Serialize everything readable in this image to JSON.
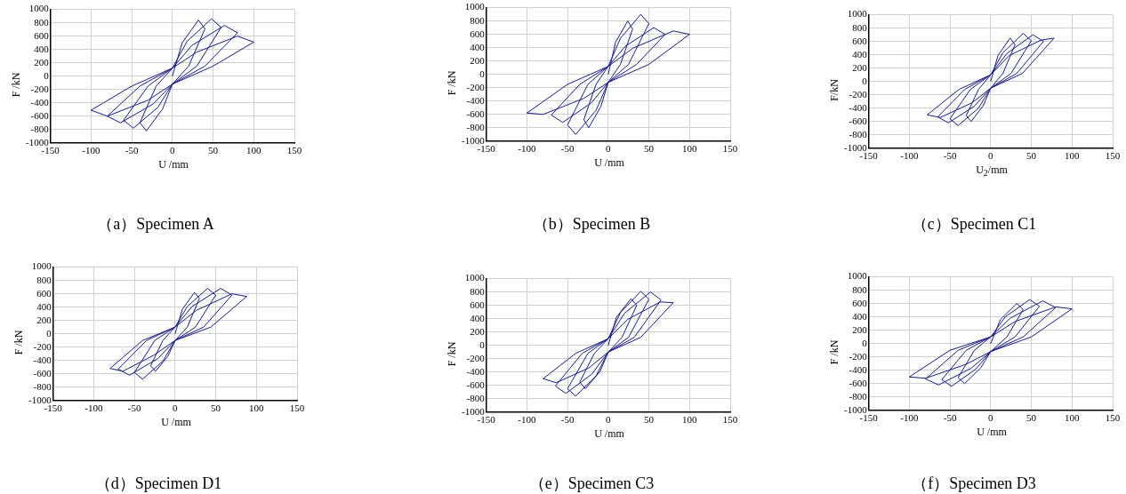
{
  "chart_data": [
    {
      "type": "line",
      "title": "（a）Specimen A",
      "xlabel": "U /mm",
      "ylabel": "F /kN",
      "xlim": [
        -150,
        150
      ],
      "xticks": [
        -150,
        -100,
        -50,
        0,
        50,
        100,
        150
      ],
      "ylim": [
        -1000,
        1000
      ],
      "yticks": [
        -1000,
        -800,
        -600,
        -400,
        -200,
        0,
        200,
        400,
        600,
        800,
        1000
      ],
      "grid": true,
      "legend": false,
      "marker": "none",
      "series": [
        {
          "color": "#1a1a8c",
          "x": [
            0,
            12,
            32,
            40,
            20,
            0,
            -12,
            -32,
            -40,
            -20,
            0,
            18,
            48,
            60,
            30,
            0,
            -18,
            -48,
            -60,
            -30,
            0,
            24,
            64,
            80,
            40,
            0,
            -24,
            -64,
            -80,
            -40,
            0,
            30,
            80,
            100,
            50,
            0,
            -30,
            -80,
            -100,
            -50,
            0
          ],
          "values": [
            0,
            500,
            840,
            710,
            150,
            -120,
            -490,
            -820,
            -700,
            -150,
            120,
            520,
            860,
            730,
            150,
            -120,
            -470,
            -780,
            -660,
            -150,
            120,
            460,
            760,
            650,
            150,
            -120,
            -420,
            -700,
            -600,
            -150,
            120,
            360,
            600,
            510,
            150,
            -120,
            -360,
            -600,
            -510,
            -150,
            120
          ]
        }
      ]
    },
    {
      "type": "line",
      "title": "（b）Specimen B",
      "xlabel": "U /mm",
      "ylabel": "F /kN",
      "xlim": [
        -150,
        150
      ],
      "xticks": [
        -150,
        -100,
        -50,
        0,
        50,
        100,
        150
      ],
      "ylim": [
        -1000,
        1000
      ],
      "yticks": [
        -1000,
        -800,
        -600,
        -400,
        -200,
        0,
        200,
        400,
        600,
        800,
        1000
      ],
      "grid": true,
      "legend": false,
      "marker": "none",
      "series": [
        {
          "color": "#1a1a8c",
          "x": [
            0,
            9,
            24,
            30,
            15,
            0,
            -9,
            -24,
            -30,
            -15,
            0,
            15,
            40,
            50,
            25,
            0,
            -15,
            -40,
            -50,
            -25,
            0,
            21,
            56,
            70,
            35,
            0,
            -21,
            -56,
            -70,
            -35,
            0,
            30,
            80,
            100,
            50,
            0,
            -30,
            -80,
            -100,
            -50,
            0
          ],
          "values": [
            0,
            480,
            800,
            680,
            150,
            -120,
            -480,
            -800,
            -680,
            -150,
            120,
            540,
            900,
            760,
            150,
            -120,
            -540,
            -900,
            -760,
            -150,
            120,
            420,
            700,
            600,
            150,
            -120,
            -430,
            -720,
            -610,
            -150,
            120,
            390,
            650,
            600,
            150,
            -120,
            -360,
            -600,
            -580,
            -150,
            120
          ]
        }
      ]
    },
    {
      "type": "line",
      "title": "（c）Specimen C1",
      "xlabel": "U$_{2}$/mm",
      "ylabel": "F/kN",
      "xlim": [
        -150,
        150
      ],
      "xticks": [
        -150,
        -100,
        -50,
        0,
        50,
        100,
        150
      ],
      "ylim": [
        -1000,
        1000
      ],
      "yticks": [
        -1000,
        -800,
        -600,
        -400,
        -200,
        0,
        200,
        400,
        600,
        800,
        1000
      ],
      "grid": true,
      "legend": false,
      "marker": "none",
      "series": [
        {
          "color": "#1a1a8c",
          "x": [
            0,
            9,
            24,
            30,
            15,
            0,
            -9,
            -24,
            -30,
            -15,
            0,
            15,
            40,
            50,
            25,
            0,
            -15,
            -40,
            -50,
            -25,
            0,
            20,
            52,
            65,
            32,
            0,
            -20,
            -52,
            -65,
            -32,
            0,
            23,
            62,
            78,
            39,
            0,
            -23,
            -62,
            -78,
            -39,
            0
          ],
          "values": [
            0,
            390,
            650,
            550,
            120,
            -100,
            -360,
            -600,
            -510,
            -120,
            100,
            430,
            720,
            610,
            120,
            -100,
            -400,
            -660,
            -560,
            -120,
            100,
            420,
            700,
            600,
            120,
            -100,
            -370,
            -620,
            -530,
            -120,
            100,
            390,
            620,
            650,
            120,
            -100,
            -320,
            -540,
            -500,
            -120,
            100
          ]
        }
      ]
    },
    {
      "type": "line",
      "title": "（d）Specimen D1",
      "xlabel": "U /mm",
      "ylabel": "F /kN",
      "xlim": [
        -150,
        150
      ],
      "xticks": [
        -150,
        -100,
        -50,
        0,
        50,
        100,
        150
      ],
      "ylim": [
        -1000,
        1000
      ],
      "yticks": [
        -1000,
        -800,
        -600,
        -400,
        -200,
        0,
        200,
        400,
        600,
        800,
        1000
      ],
      "grid": true,
      "legend": false,
      "marker": "none",
      "series": [
        {
          "color": "#1a1a8c",
          "x": [
            0,
            9,
            24,
            30,
            15,
            0,
            -9,
            -24,
            -30,
            -15,
            0,
            15,
            40,
            50,
            25,
            0,
            -15,
            -40,
            -50,
            -25,
            0,
            21,
            56,
            70,
            35,
            0,
            -21,
            -56,
            -70,
            -35,
            0,
            26,
            70,
            88,
            44,
            0,
            -26,
            -64,
            -80,
            -40,
            0
          ],
          "values": [
            0,
            370,
            620,
            530,
            100,
            -100,
            -340,
            -560,
            -480,
            -100,
            100,
            410,
            680,
            580,
            100,
            -100,
            -410,
            -680,
            -580,
            -100,
            100,
            410,
            680,
            580,
            100,
            -100,
            -370,
            -620,
            -530,
            -100,
            100,
            350,
            600,
            560,
            100,
            -100,
            -320,
            -560,
            -520,
            -100,
            100
          ]
        }
      ]
    },
    {
      "type": "line",
      "title": "（e）Specimen C3",
      "xlabel": "U /mm",
      "ylabel": "F /kN",
      "xlim": [
        -150,
        150
      ],
      "xticks": [
        -150,
        -100,
        -50,
        0,
        50,
        100,
        150
      ],
      "ylim": [
        -1000,
        1000
      ],
      "yticks": [
        -1000,
        -800,
        -600,
        -400,
        -200,
        0,
        200,
        400,
        600,
        800,
        1000
      ],
      "grid": true,
      "legend": false,
      "marker": "none",
      "series": [
        {
          "color": "#1a1a8c",
          "x": [
            0,
            10,
            28,
            35,
            17,
            0,
            -10,
            -28,
            -35,
            -17,
            0,
            15,
            40,
            50,
            25,
            0,
            -15,
            -40,
            -50,
            -25,
            0,
            20,
            52,
            65,
            32,
            0,
            -20,
            -52,
            -65,
            -32,
            0,
            24,
            64,
            80,
            40,
            0,
            -24,
            -64,
            -80,
            -40,
            0
          ],
          "values": [
            0,
            420,
            700,
            600,
            120,
            -100,
            -390,
            -650,
            -550,
            -120,
            100,
            490,
            810,
            690,
            120,
            -100,
            -460,
            -760,
            -650,
            -120,
            100,
            480,
            800,
            680,
            120,
            -100,
            -430,
            -720,
            -610,
            -120,
            100,
            390,
            650,
            640,
            120,
            -100,
            -340,
            -560,
            -500,
            -120,
            100
          ]
        }
      ]
    },
    {
      "type": "line",
      "title": "（f）Specimen D3",
      "xlabel": "U /mm",
      "ylabel": "F /kN",
      "xlim": [
        -150,
        150
      ],
      "xticks": [
        -150,
        -100,
        -50,
        0,
        50,
        100,
        150
      ],
      "ylim": [
        -1000,
        1000
      ],
      "yticks": [
        -1000,
        -800,
        -600,
        -400,
        -200,
        0,
        200,
        400,
        600,
        800,
        1000
      ],
      "grid": true,
      "legend": false,
      "marker": "none",
      "series": [
        {
          "color": "#1a1a8c",
          "x": [
            0,
            12,
            32,
            40,
            20,
            0,
            -12,
            -32,
            -40,
            -20,
            0,
            18,
            48,
            60,
            30,
            0,
            -18,
            -48,
            -60,
            -30,
            0,
            24,
            64,
            80,
            40,
            0,
            -24,
            -64,
            -80,
            -40,
            0,
            30,
            80,
            100,
            50,
            0,
            -30,
            -80,
            -100,
            -50,
            0
          ],
          "values": [
            0,
            360,
            600,
            510,
            100,
            -120,
            -360,
            -600,
            -510,
            -100,
            100,
            400,
            660,
            560,
            100,
            -120,
            -380,
            -640,
            -540,
            -100,
            100,
            380,
            640,
            540,
            100,
            -120,
            -370,
            -620,
            -530,
            -100,
            100,
            330,
            550,
            520,
            100,
            -120,
            -310,
            -520,
            -500,
            -100,
            100
          ]
        }
      ]
    }
  ]
}
